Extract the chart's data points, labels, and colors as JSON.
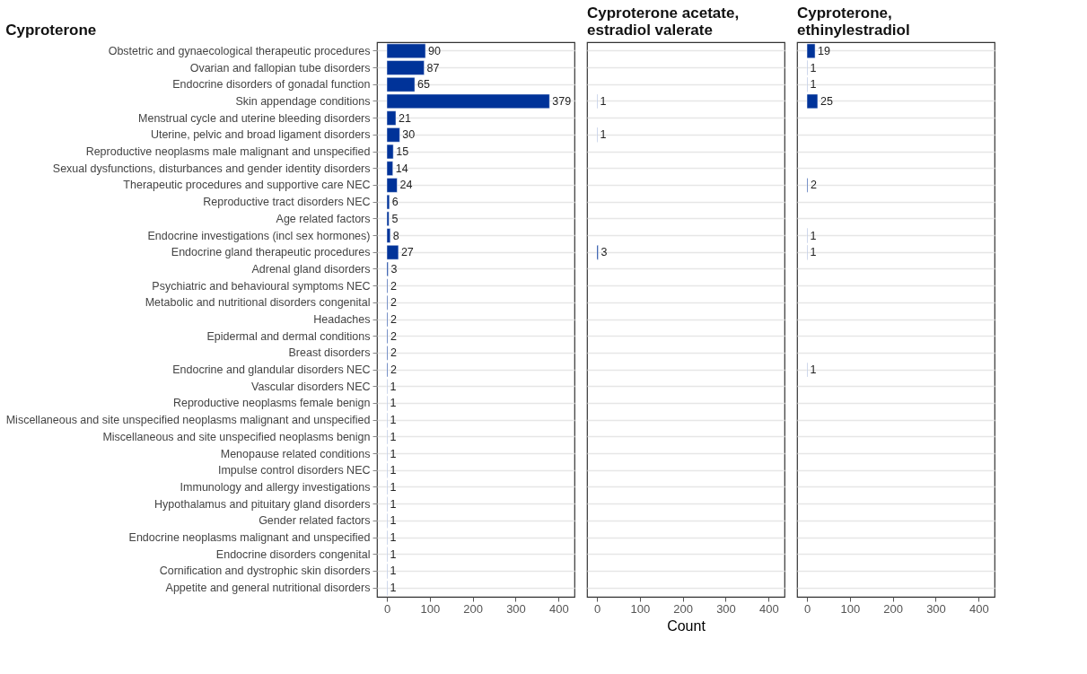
{
  "chart_data": [
    {
      "type": "bar",
      "orientation": "horizontal",
      "title": "Cyproterone",
      "categories": [
        "Obstetric and gynaecological therapeutic procedures",
        "Ovarian and fallopian tube disorders",
        "Endocrine disorders of gonadal function",
        "Skin appendage conditions",
        "Menstrual cycle and uterine bleeding disorders",
        "Uterine, pelvic and broad ligament disorders",
        "Reproductive neoplasms male malignant and unspecified",
        "Sexual dysfunctions, disturbances and gender identity disorders",
        "Therapeutic procedures and supportive care NEC",
        "Reproductive tract disorders NEC",
        "Age related factors",
        "Endocrine investigations (incl sex hormones)",
        "Endocrine gland therapeutic procedures",
        "Adrenal gland disorders",
        "Psychiatric and behavioural symptoms NEC",
        "Metabolic and nutritional disorders congenital",
        "Headaches",
        "Epidermal and dermal conditions",
        "Breast disorders",
        "Endocrine and glandular disorders NEC",
        "Vascular disorders NEC",
        "Reproductive neoplasms female benign",
        "Miscellaneous and site unspecified neoplasms malignant and unspecified",
        "Miscellaneous and site unspecified neoplasms benign",
        "Menopause related conditions",
        "Impulse control disorders NEC",
        "Immunology and allergy investigations",
        "Hypothalamus and pituitary gland disorders",
        "Gender related factors",
        "Endocrine neoplasms malignant and unspecified",
        "Endocrine disorders congenital",
        "Cornification and dystrophic skin disorders",
        "Appetite and general nutritional disorders"
      ],
      "values": [
        90,
        87,
        65,
        379,
        21,
        30,
        15,
        14,
        24,
        6,
        5,
        8,
        27,
        3,
        2,
        2,
        2,
        2,
        2,
        2,
        1,
        1,
        1,
        1,
        1,
        1,
        1,
        1,
        1,
        1,
        1,
        1,
        1
      ],
      "color": "#003399",
      "xlim": [
        -23,
        437
      ],
      "xticks": [
        0,
        100,
        200,
        300,
        400
      ],
      "grid": "y",
      "data_labels": true
    },
    {
      "type": "bar",
      "orientation": "horizontal",
      "title": "Cyproterone acetate,\nestradiol valerate",
      "xlabel": "Count",
      "values": [
        null,
        null,
        null,
        1,
        null,
        1,
        null,
        null,
        null,
        null,
        null,
        null,
        3,
        null,
        null,
        null,
        null,
        null,
        null,
        null,
        null,
        null,
        null,
        null,
        null,
        null,
        null,
        null,
        null,
        null,
        null,
        null,
        null
      ],
      "color": "#003399",
      "xlim": [
        -23,
        437
      ],
      "xticks": [
        0,
        100,
        200,
        300,
        400
      ],
      "grid": "y",
      "data_labels": true,
      "tick_labels": "x"
    },
    {
      "type": "bar",
      "orientation": "horizontal",
      "title": "Cyproterone,\nethinylestradiol",
      "values": [
        19,
        1,
        1,
        25,
        null,
        null,
        null,
        null,
        2,
        null,
        null,
        1,
        1,
        null,
        null,
        null,
        null,
        null,
        null,
        1,
        null,
        null,
        null,
        null,
        null,
        null,
        null,
        null,
        null,
        null,
        null,
        null,
        null
      ],
      "color": "#003399",
      "xlim": [
        -23,
        437
      ],
      "xticks": [
        0,
        100,
        200,
        300,
        400
      ],
      "grid": "y",
      "data_labels": true,
      "tick_labels": "x"
    }
  ]
}
